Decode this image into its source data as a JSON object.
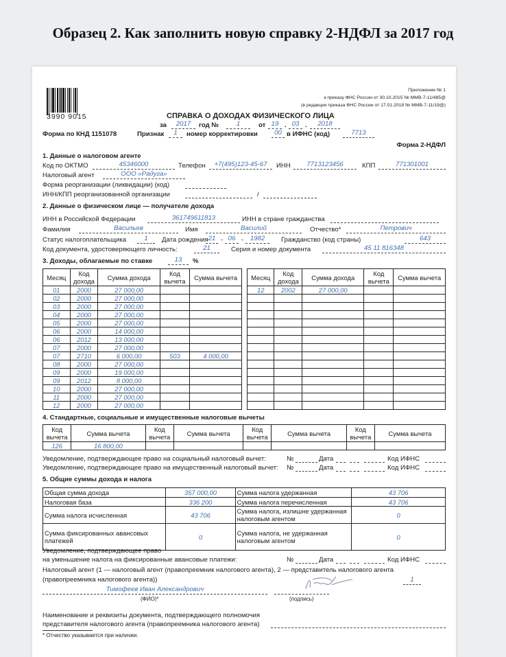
{
  "headline": "Образец 2. Как заполнить новую справку 2-НДФЛ за 2017 год",
  "form": {
    "barcode_number": "3990 9015",
    "attachment": [
      "Приложение № 1",
      "к приказу ФНС России от 30.10.2015 № ММВ-7-11/485@",
      "(в редакции приказа ФНС России от 17.01.2018 № ММВ-7-11/19@)"
    ],
    "title": "СПРАВКА О ДОХОДАХ ФИЗИЧЕСКОГО ЛИЦА",
    "za_label": "за",
    "year": "2017",
    "god_no_label": "год №",
    "number": "1",
    "ot_label": "от",
    "date_day": "19",
    "dot": ".",
    "date_month": "03",
    "date_year": "2018",
    "knd_label": "Форма по КНД 1151078",
    "priznak_label": "Признак",
    "priznak": "1",
    "corr_label": "номер корректировки",
    "corr": "00",
    "ifns_label": "в ИФНС (код)",
    "ifns": "7713",
    "form_name": "Форма 2-НДФЛ"
  },
  "section1": {
    "title": "1. Данные о налоговом агенте",
    "oktmo_label": "Код по ОКТМО",
    "oktmo": "45346000",
    "phone_label": "Телефон",
    "phone": "+7(495)123-45-67",
    "inn_label": "ИНН",
    "inn": "7713123456",
    "kpp_label": "КПП",
    "kpp": "771301001",
    "agent_label": "Налоговый агент",
    "agent": "ООО «Радуга»",
    "reorg_label": "Форма реорганизации (ликвидации) (код)",
    "reorg_inn_label": "ИНН/КПП реорганизованной организации",
    "slash": "/"
  },
  "section2": {
    "title": "2. Данные о физическом лице — получателе дохода",
    "inn_rf_label": "ИНН в Российской Федерации",
    "inn_rf": "361749611813",
    "inn_foreign_label": "ИНН в стране гражданства",
    "surname_label": "Фамилия",
    "surname": "Васильев",
    "name_label": "Имя",
    "name": "Василий",
    "patronymic_label": "Отчество*",
    "patronymic": "Петрович",
    "status_label": "Статус налогоплательщика",
    "status": "1",
    "birth_label": "Дата рождения",
    "birth_day": "21",
    "dash": "-",
    "birth_month": "06",
    "birth_year": "1982",
    "citizenship_label": "Гражданство (код страны)",
    "citizenship": "643",
    "doc_code_label": "Код документа, удостоверяющего личность:",
    "doc_code": "21",
    "doc_number_label": "Серия и номер документа",
    "doc_number": "45 11 816348"
  },
  "section3": {
    "title": "3. Доходы, облагаемые по ставке",
    "rate": "13",
    "percent": "%",
    "headers": [
      "Месяц",
      "Код дохода",
      "Сумма дохода",
      "Код вычета",
      "Сумма вычета"
    ],
    "left_rows": [
      [
        "01",
        "2000",
        "27 000,00",
        "",
        ""
      ],
      [
        "02",
        "2000",
        "27 000,00",
        "",
        ""
      ],
      [
        "03",
        "2000",
        "27 000,00",
        "",
        ""
      ],
      [
        "04",
        "2000",
        "27 000,00",
        "",
        ""
      ],
      [
        "05",
        "2000",
        "27 000,00",
        "",
        ""
      ],
      [
        "06",
        "2000",
        "14 000,00",
        "",
        ""
      ],
      [
        "06",
        "2012",
        "13 000,00",
        "",
        ""
      ],
      [
        "07",
        "2000",
        "27 000,00",
        "",
        ""
      ],
      [
        "07",
        "2710",
        "6 000,00",
        "503",
        "4 000,00"
      ],
      [
        "08",
        "2000",
        "27 000,00",
        "",
        ""
      ],
      [
        "09",
        "2000",
        "19 000,00",
        "",
        ""
      ],
      [
        "09",
        "2012",
        "8 000,00",
        "",
        ""
      ],
      [
        "10",
        "2000",
        "27 000,00",
        "",
        ""
      ],
      [
        "11",
        "2000",
        "27 000,00",
        "",
        ""
      ],
      [
        "12",
        "2000",
        "27 000,00",
        "",
        ""
      ]
    ],
    "right_rows": [
      [
        "12",
        "2002",
        "27 000,00",
        "",
        ""
      ]
    ]
  },
  "section4": {
    "title": "4. Стандартные, социальные и имущественные налоговые вычеты",
    "code_header": "Код вычета",
    "sum_header": "Сумма вычета",
    "values": [
      [
        "126",
        "16 800,00"
      ],
      [
        "",
        ""
      ],
      [
        "",
        ""
      ],
      [
        "",
        ""
      ]
    ],
    "notice_social": "Уведомление, подтверждающее право на социальный налоговый вычет:",
    "notice_property": "Уведомление, подтверждающее право на имущественный налоговый вычет:",
    "no_label": "№",
    "date_label": "Дата",
    "ifns_label": "Код ИФНС"
  },
  "section5": {
    "title": "5. Общие суммы дохода и налога",
    "rows": [
      [
        "Общая сумма дохода",
        "357 000,00",
        "Сумма налога удержанная",
        "43 706"
      ],
      [
        "Налоговая база",
        "336 200",
        "Сумма налога перечисленная",
        "43 706"
      ],
      [
        "Сумма налога исчисленная",
        "43 706",
        "Сумма налога, излишне удержанная налоговым агентом",
        "0"
      ],
      [
        "Сумма фиксированных авансовых платежей",
        "0",
        "Сумма налога, не удержанная налоговым агентом",
        "0"
      ]
    ]
  },
  "footer": {
    "notice_line1": "Уведомление, подтверждающее право",
    "notice_line2": "на уменьшение налога на фиксированные авансовые платежи:",
    "agent_line1": "Налоговый агент (1 — налоговый агент (правопреемник налогового агента), 2 — представитель налогового агента",
    "agent_line2": "(правопреемника налогового агента))",
    "agent_type": "1",
    "fio": "Тимофеев Иван Александрович",
    "fio_label": "(ФИО)*",
    "sign_label": "(подпись)",
    "doc_line1": "Наименование и реквизиты документа, подтверждающего полномочия",
    "doc_line2": "представителя налогового агента (правопреемника налогового агента)",
    "footnote": "* Отчество указывается при наличии."
  },
  "colors": {
    "filled_value": "#3d6fae",
    "ink": "#222222",
    "background": "#eceef0"
  }
}
